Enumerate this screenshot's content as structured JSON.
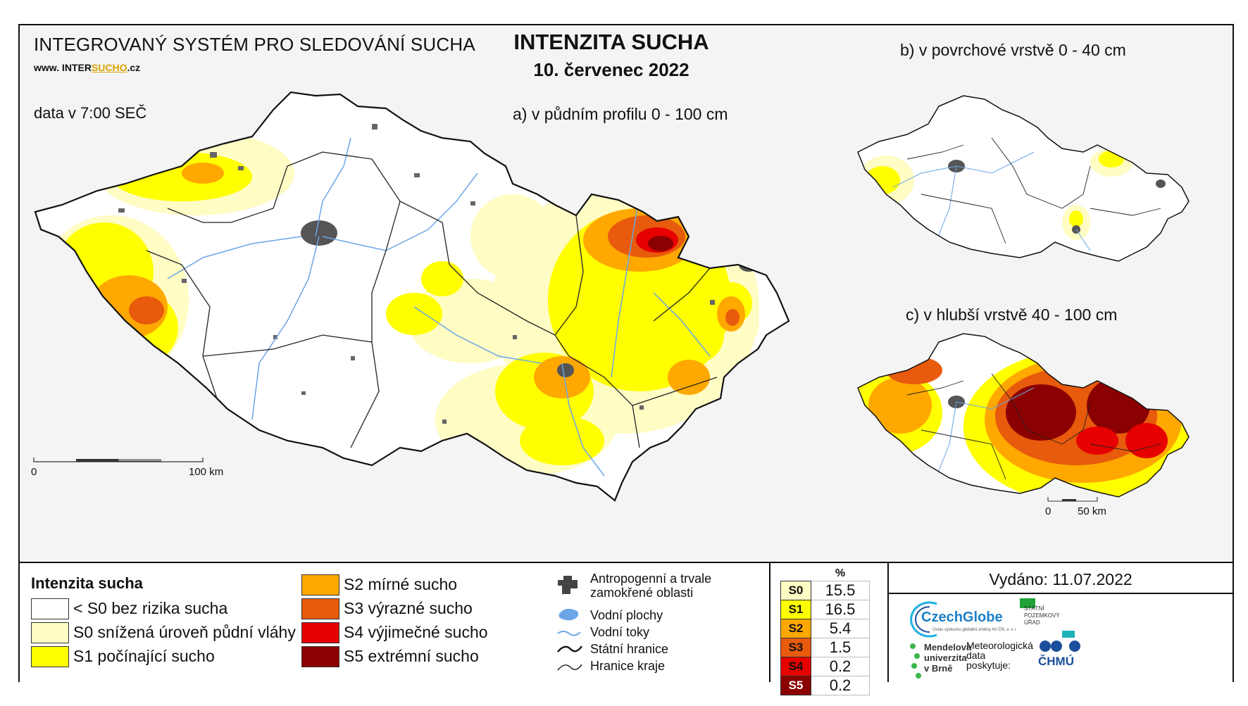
{
  "header": {
    "system_title": "INTEGROVANÝ SYSTÉM PRO SLEDOVÁNÍ SUCHA",
    "website_prefix": "www. INTER",
    "website_highlight": "SUCHO",
    "website_suffix": ".cz",
    "data_time": "data v 7:00 SEČ"
  },
  "map_title": "INTENZITA SUCHA",
  "map_date": "10. červenec 2022",
  "maps": {
    "main": {
      "label": "a) v půdním profilu 0 - 100 cm",
      "scale_start": "0",
      "scale_end": "100 km"
    },
    "surface": {
      "label": "b) v povrchové vrstvě 0 - 40 cm"
    },
    "deep": {
      "label": "c) v hlubší vrstvě 40 - 100 cm",
      "scale_start": "0",
      "scale_end": "50 km"
    }
  },
  "legend": {
    "title": "Intenzita sucha",
    "classes": [
      {
        "label": "< S0 bez rizika sucha",
        "color": "#ffffff"
      },
      {
        "label": "S0 snížená úroveň půdní vláhy",
        "color": "#fffcc4"
      },
      {
        "label": "S1 počínající sucho",
        "color": "#ffff00"
      },
      {
        "label": "S2 mírné sucho",
        "color": "#ffa800"
      },
      {
        "label": "S3 výrazné sucho",
        "color": "#e85a0c"
      },
      {
        "label": "S4 výjimečné sucho",
        "color": "#e60000"
      },
      {
        "label": "S5 extrémní sucho",
        "color": "#8b0000"
      }
    ],
    "symbols": [
      {
        "label_1": "Antropogenní a trvale",
        "label_2": "zamokřené oblasti",
        "icon": "anthropogenic-area-icon"
      },
      {
        "label": "Vodní plochy",
        "icon": "water-body-icon"
      },
      {
        "label": "Vodní toky",
        "icon": "river-icon"
      },
      {
        "label": "Státní hranice",
        "icon": "state-border-icon"
      },
      {
        "label": "Hranice kraje",
        "icon": "region-border-icon"
      }
    ]
  },
  "percentages": {
    "header": "%",
    "rows": [
      {
        "code": "S0",
        "value": "15.5",
        "color": "#fffcc4"
      },
      {
        "code": "S1",
        "value": "16.5",
        "color": "#ffff00"
      },
      {
        "code": "S2",
        "value": "5.4",
        "color": "#ffa800"
      },
      {
        "code": "S3",
        "value": "1.5",
        "color": "#e85a0c"
      },
      {
        "code": "S4",
        "value": "0.2",
        "color": "#e60000"
      },
      {
        "code": "S5",
        "value": "0.2",
        "color": "#8b0000"
      }
    ]
  },
  "issued": "Vydáno: 11.07.2022",
  "logos": {
    "czechglobe": "CzechGlobe",
    "czechglobe_sub": "Ústav výzkumu globální změny AV ČR, v. v. i.",
    "spu_1": "STÁTNÍ",
    "spu_2": "POZEMKOVÝ",
    "spu_3": "ÚŘAD",
    "mendelu_1": "Mendelova",
    "mendelu_2": "univerzita",
    "mendelu_3": "v Brně",
    "meteo_1": "Meteorologická",
    "meteo_2": "data",
    "meteo_3": "poskytuje:",
    "chmu": "ČHMÚ"
  }
}
